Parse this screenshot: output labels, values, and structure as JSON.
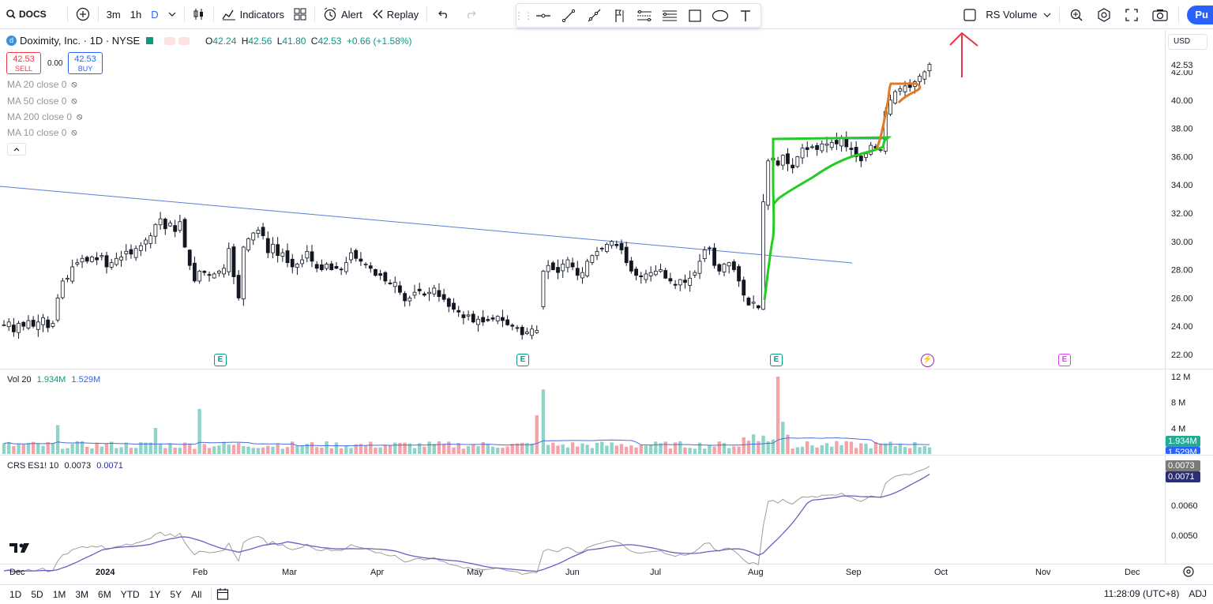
{
  "toolbar": {
    "symbol": "DOCS",
    "intervals": [
      "3m",
      "1h",
      "D"
    ],
    "indicators_label": "Indicators",
    "alert_label": "Alert",
    "replay_label": "Replay",
    "rs_volume_label": "RS Volume",
    "publish_label": "Pu",
    "icons": [
      "search-icon",
      "add-symbol-icon",
      "chevron-down-icon",
      "candles-icon",
      "indicators-icon",
      "layouts-icon",
      "alert-icon",
      "replay-icon",
      "undo-icon",
      "redo-icon",
      "hline-icon",
      "trendline-icon",
      "ray-icon",
      "flag-icon",
      "pattern-icon",
      "fib-icon",
      "rectangle-icon",
      "ellipse-icon",
      "text-icon",
      "checkbox-icon",
      "zoom-icon",
      "settings-icon",
      "fullscreen-icon",
      "camera-icon"
    ]
  },
  "legend": {
    "title": "Doximity, Inc. · 1D · NYSE",
    "ohlc": {
      "o": "42.24",
      "h": "42.56",
      "l": "41.80",
      "c": "42.53",
      "chg": "+0.66 (+1.58%)"
    },
    "sell_price": "42.53",
    "sell_label": "SELL",
    "spread": "0.00",
    "buy_price": "42.53",
    "buy_label": "BUY",
    "ma": [
      "MA 20 close 0",
      "MA 50 close 0",
      "MA 200 close 0",
      "MA 10 close 0"
    ]
  },
  "currency": "USD",
  "price_axis": {
    "ticks": [
      "42.00",
      "40.00",
      "38.00",
      "36.00",
      "34.00",
      "32.00",
      "30.00",
      "28.00",
      "26.00",
      "24.00",
      "22.00"
    ],
    "last_label": "42.53"
  },
  "volume": {
    "legend_name": "Vol 20",
    "v1": "1.934M",
    "v2": "1.529M",
    "ticks": [
      "12 M",
      "8 M",
      "4 M"
    ],
    "tag1": "1.934M",
    "tag2": "1.529M"
  },
  "crs": {
    "legend_name": "CRS ES1! 10",
    "v1": "0.0073",
    "v2": "0.0071",
    "ticks": [
      "0.0060",
      "0.0050"
    ],
    "tag1": "0.0073",
    "tag2": "0.0071"
  },
  "time_axis": [
    "Dec",
    "2024",
    "Feb",
    "Mar",
    "Apr",
    "May",
    "Jun",
    "Jul",
    "Aug",
    "Sep",
    "Oct",
    "Nov",
    "Dec"
  ],
  "events": [
    "E",
    "E",
    "E",
    "E"
  ],
  "ranges": [
    "1D",
    "5D",
    "1M",
    "3M",
    "6M",
    "YTD",
    "1Y",
    "5Y",
    "All"
  ],
  "clock": "11:28:09 (UTC+8)",
  "adj_label": "ADJ",
  "colors": {
    "up": "#089981",
    "down": "#f23645",
    "accent": "#2962ff",
    "green_drawing": "#22cc22",
    "orange_drawing": "#e07b22",
    "red_arrow": "#e8334a"
  },
  "chart_data": {
    "type": "candlestick",
    "ylim": [
      22,
      43
    ],
    "closes": [
      24.1,
      24.3,
      23.6,
      24.2,
      24.0,
      24.4,
      24.0,
      24.3,
      24.6,
      23.9,
      24.2,
      26.0,
      27.2,
      27.4,
      28.2,
      28.5,
      28.8,
      28.6,
      28.9,
      28.7,
      29.0,
      28.2,
      28.5,
      28.8,
      28.9,
      29.3,
      29.1,
      29.5,
      29.7,
      30.1,
      30.4,
      31.2,
      31.6,
      30.9,
      31.3,
      30.7,
      31.4,
      29.6,
      28.3,
      27.2,
      27.9,
      27.8,
      27.6,
      27.7,
      27.9,
      28.1,
      29.5,
      27.5,
      26.0,
      29.6,
      30.2,
      30.6,
      30.8,
      30.4,
      29.2,
      29.8,
      29.0,
      29.2,
      28.5,
      28.2,
      28.4,
      28.7,
      29.3,
      28.6,
      28.1,
      28.0,
      28.4,
      28.0,
      28.1,
      28.0,
      28.5,
      29.2,
      28.8,
      28.6,
      28.4,
      28.1,
      27.6,
      27.6,
      27.2,
      27.0,
      27.1,
      26.4,
      25.8,
      26.0,
      26.4,
      26.5,
      26.2,
      26.4,
      26.7,
      26.1,
      25.9,
      25.4,
      25.2,
      25.0,
      24.6,
      24.8,
      24.3,
      24.5,
      24.3,
      24.4,
      24.5,
      24.7,
      24.4,
      24.1,
      24.0,
      23.9,
      23.4,
      23.6,
      23.8,
      23.7,
      27.9,
      28.3,
      28.0,
      27.8,
      28.4,
      28.7,
      28.2,
      27.6,
      27.8,
      28.6,
      29.0,
      29.3,
      29.5,
      29.8,
      30.0,
      29.7,
      29.4,
      28.5,
      27.9,
      27.6,
      27.5,
      27.7,
      27.8,
      27.9,
      28.0,
      27.4,
      27.2,
      26.9,
      27.3,
      27.1,
      27.4,
      27.8,
      28.6,
      29.4,
      29.5,
      28.3,
      27.9,
      28.4,
      28.5,
      28.0,
      27.2,
      26.2,
      25.5,
      25.7,
      25.3,
      32.8,
      35.7,
      35.9,
      35.4,
      36.1,
      35.5,
      35.2,
      36.0,
      36.6,
      36.5,
      36.7,
      36.5,
      36.9,
      36.9,
      37.0,
      36.9,
      37.3,
      36.7,
      36.5,
      36.0,
      35.7,
      36.2,
      36.8,
      36.6,
      36.5,
      39.2,
      40.0,
      40.6,
      40.8,
      41.0,
      40.9,
      41.3,
      41.7,
      42.0,
      42.53
    ]
  }
}
